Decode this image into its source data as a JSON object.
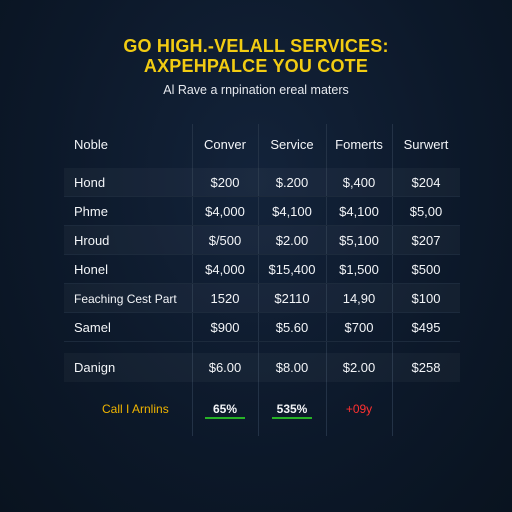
{
  "header": {
    "title_line1": "GO HIGH.-VELALL SERVICES:",
    "title_line2": "AXPEHPALCE YOU COTE",
    "subtitle": "Al Rave a rnpination ereal maters"
  },
  "table": {
    "columns": [
      "Noble",
      "Conver",
      "Service",
      "Fomerts",
      "Surwert"
    ],
    "rows": [
      {
        "label": "Hond",
        "values": [
          "$200",
          "$.200",
          "$,400",
          "$204"
        ]
      },
      {
        "label": "Phme",
        "values": [
          "$4,000",
          "$4,100",
          "$4,100",
          "$5,00"
        ]
      },
      {
        "label": "Hroud",
        "values": [
          "$/500",
          "$2.00",
          "$5,100",
          "$207"
        ]
      },
      {
        "label": "Honel",
        "values": [
          "$4,000",
          "$15,400",
          "$1,500",
          "$500"
        ]
      },
      {
        "label": "Feaching Cest Part",
        "values": [
          "1520",
          "$2110",
          "14,90",
          "$100"
        ]
      },
      {
        "label": "Samel",
        "values": [
          "$900",
          "$5.60",
          "$700",
          "$495"
        ]
      },
      {
        "label": "Danign",
        "values": [
          "$6.00",
          "$8.00",
          "$2.00",
          "$258"
        ]
      }
    ],
    "footer": {
      "label": "Call I Arnlins",
      "values": [
        "65%",
        "535%",
        "+09y"
      ],
      "colors": {
        "label": "#f0b400",
        "highlight": "#27b327",
        "negative": "#ff3030"
      }
    }
  },
  "colors": {
    "background": "#0c1829",
    "title": "#f2cc12",
    "text": "#f3f5f8"
  }
}
